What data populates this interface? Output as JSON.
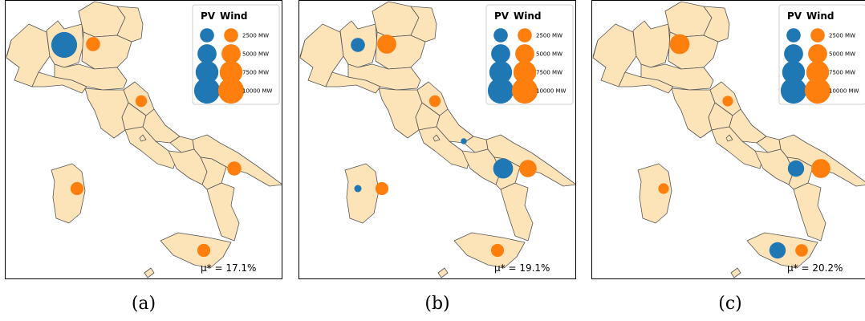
{
  "colors": {
    "pv": "#1f77b4",
    "wind": "#ff7f0e",
    "land": "#fde3b8",
    "border": "#555555"
  },
  "legend": {
    "pv_label": "PV",
    "wind_label": "Wind",
    "entries": [
      {
        "label": "2500 MW",
        "mw": 2500
      },
      {
        "label": "5000 MW",
        "mw": 5000
      },
      {
        "label": "7500 MW",
        "mw": 7500
      },
      {
        "label": "10000 MW",
        "mw": 10000
      }
    ]
  },
  "panels": [
    {
      "id": "a",
      "caption": "(a)",
      "mu_text": "μ* = 17.1%",
      "installations": [
        {
          "region": "north-west",
          "type": "pv",
          "mw": 10000
        },
        {
          "region": "north-east",
          "type": "wind",
          "mw": 2500
        },
        {
          "region": "center-east",
          "type": "wind",
          "mw": 1500
        },
        {
          "region": "south-east",
          "type": "wind",
          "mw": 2500
        },
        {
          "region": "sardinia",
          "type": "wind",
          "mw": 2000
        },
        {
          "region": "sicily",
          "type": "wind",
          "mw": 2000
        }
      ]
    },
    {
      "id": "b",
      "caption": "(b)",
      "mu_text": "μ* = 19.1%",
      "installations": [
        {
          "region": "north-west",
          "type": "pv",
          "mw": 2500
        },
        {
          "region": "north-east",
          "type": "wind",
          "mw": 5000
        },
        {
          "region": "center-east",
          "type": "wind",
          "mw": 1500
        },
        {
          "region": "center-south",
          "type": "pv",
          "mw": 200
        },
        {
          "region": "south",
          "type": "pv",
          "mw": 5500
        },
        {
          "region": "south-east",
          "type": "wind",
          "mw": 4000
        },
        {
          "region": "sardinia",
          "type": "pv",
          "mw": 400
        },
        {
          "region": "sardinia",
          "type": "wind",
          "mw": 2000
        },
        {
          "region": "sicily",
          "type": "wind",
          "mw": 2000
        }
      ]
    },
    {
      "id": "c",
      "caption": "(c)",
      "mu_text": "μ* = 20.2%",
      "installations": [
        {
          "region": "north-east",
          "type": "wind",
          "mw": 5500
        },
        {
          "region": "center-east",
          "type": "wind",
          "mw": 1200
        },
        {
          "region": "south",
          "type": "pv",
          "mw": 3500
        },
        {
          "region": "south-east",
          "type": "wind",
          "mw": 5000
        },
        {
          "region": "sardinia",
          "type": "wind",
          "mw": 1200
        },
        {
          "region": "sicily",
          "type": "pv",
          "mw": 3500
        },
        {
          "region": "sicily",
          "type": "wind",
          "mw": 1800
        }
      ]
    }
  ]
}
